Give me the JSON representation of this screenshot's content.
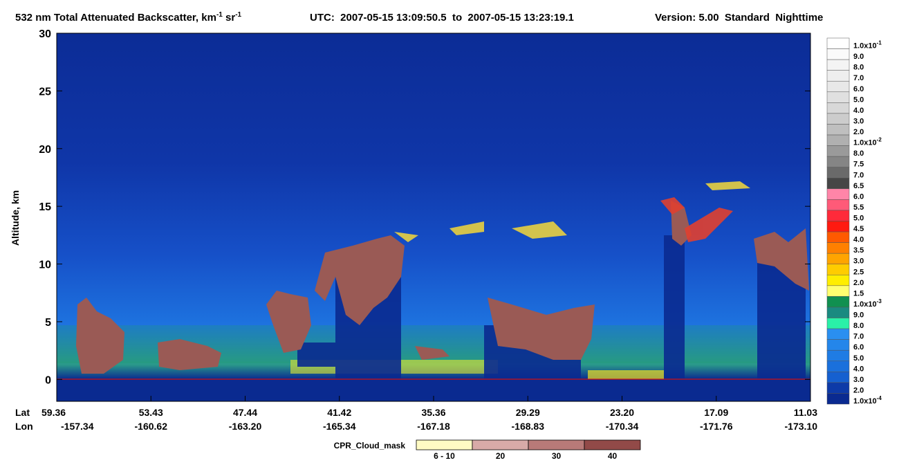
{
  "chart_data": {
    "type": "curtain",
    "title": {
      "text": "532 nm Total Attenuated Backscatter, km",
      "sup1": "-1",
      "mid": " sr",
      "sup2": "-1"
    },
    "utc": "UTC:  2007-05-15 13:09:50.5  to  2007-05-15 13:23:19.1",
    "version": "Version: 5.00  Standard  Nighttime",
    "y_label": "Altitude, km",
    "ylim": [
      -1.9,
      30
    ],
    "yticks": [
      0,
      5,
      10,
      15,
      20,
      25,
      30
    ],
    "x_row_labels": [
      "Lat",
      "Lon"
    ],
    "lat": [
      "59.36",
      "53.43",
      "47.44",
      "41.42",
      "35.36",
      "29.29",
      "23.20",
      "17.09",
      "11.03"
    ],
    "lon": [
      "-157.34",
      "-160.62",
      "-163.20",
      "-165.34",
      "-167.18",
      "-168.83",
      "-170.34",
      "-171.76",
      "-173.10"
    ],
    "colorbar": [
      {
        "label": "1.0x10",
        "exp": "-1",
        "color": "#ffffff"
      },
      {
        "label": "9.0",
        "color": "#fafafa"
      },
      {
        "label": "8.0",
        "color": "#f4f4f4"
      },
      {
        "label": "7.0",
        "color": "#eeeeee"
      },
      {
        "label": "6.0",
        "color": "#e8e8e8"
      },
      {
        "label": "5.0",
        "color": "#e0e0e0"
      },
      {
        "label": "4.0",
        "color": "#d8d8d8"
      },
      {
        "label": "3.0",
        "color": "#cccccc"
      },
      {
        "label": "2.0",
        "color": "#bfbfbf"
      },
      {
        "label": "1.0x10",
        "exp": "-2",
        "color": "#b0b0b0"
      },
      {
        "label": "8.0",
        "color": "#9a9a9a"
      },
      {
        "label": "7.5",
        "color": "#858585"
      },
      {
        "label": "7.0",
        "color": "#6a6a6a"
      },
      {
        "label": "6.5",
        "color": "#464646"
      },
      {
        "label": "6.0",
        "color": "#ff85a8"
      },
      {
        "label": "5.5",
        "color": "#ff5a78"
      },
      {
        "label": "5.0",
        "color": "#ff2a3a"
      },
      {
        "label": "4.5",
        "color": "#ff1a10"
      },
      {
        "label": "4.0",
        "color": "#ff5a00"
      },
      {
        "label": "3.5",
        "color": "#ff8000"
      },
      {
        "label": "3.0",
        "color": "#ffa400"
      },
      {
        "label": "2.5",
        "color": "#ffcc00"
      },
      {
        "label": "2.0",
        "color": "#ffee00"
      },
      {
        "label": "1.5",
        "color": "#ffff70"
      },
      {
        "label": "1.0x10",
        "exp": "-3",
        "color": "#109050"
      },
      {
        "label": "9.0",
        "color": "#1a8a80"
      },
      {
        "label": "8.0",
        "color": "#2af0a8"
      },
      {
        "label": "7.0",
        "color": "#2a8ff0"
      },
      {
        "label": "6.0",
        "color": "#2486ea"
      },
      {
        "label": "5.0",
        "color": "#1f7ce4"
      },
      {
        "label": "4.0",
        "color": "#1a70dc"
      },
      {
        "label": "3.0",
        "color": "#1560d0"
      },
      {
        "label": "2.0",
        "color": "#0d3aa8"
      },
      {
        "label": "1.0x10",
        "exp": "-4",
        "color": "#0a2a90"
      }
    ],
    "cpr": {
      "title": "CPR_Cloud_mask",
      "bins": [
        {
          "label": "6 - 10",
          "color": "#fffbc4"
        },
        {
          "label": "20",
          "color": "#d8aaa8"
        },
        {
          "label": "30",
          "color": "#b87a78"
        },
        {
          "label": "40",
          "color": "#924a48"
        }
      ]
    }
  }
}
